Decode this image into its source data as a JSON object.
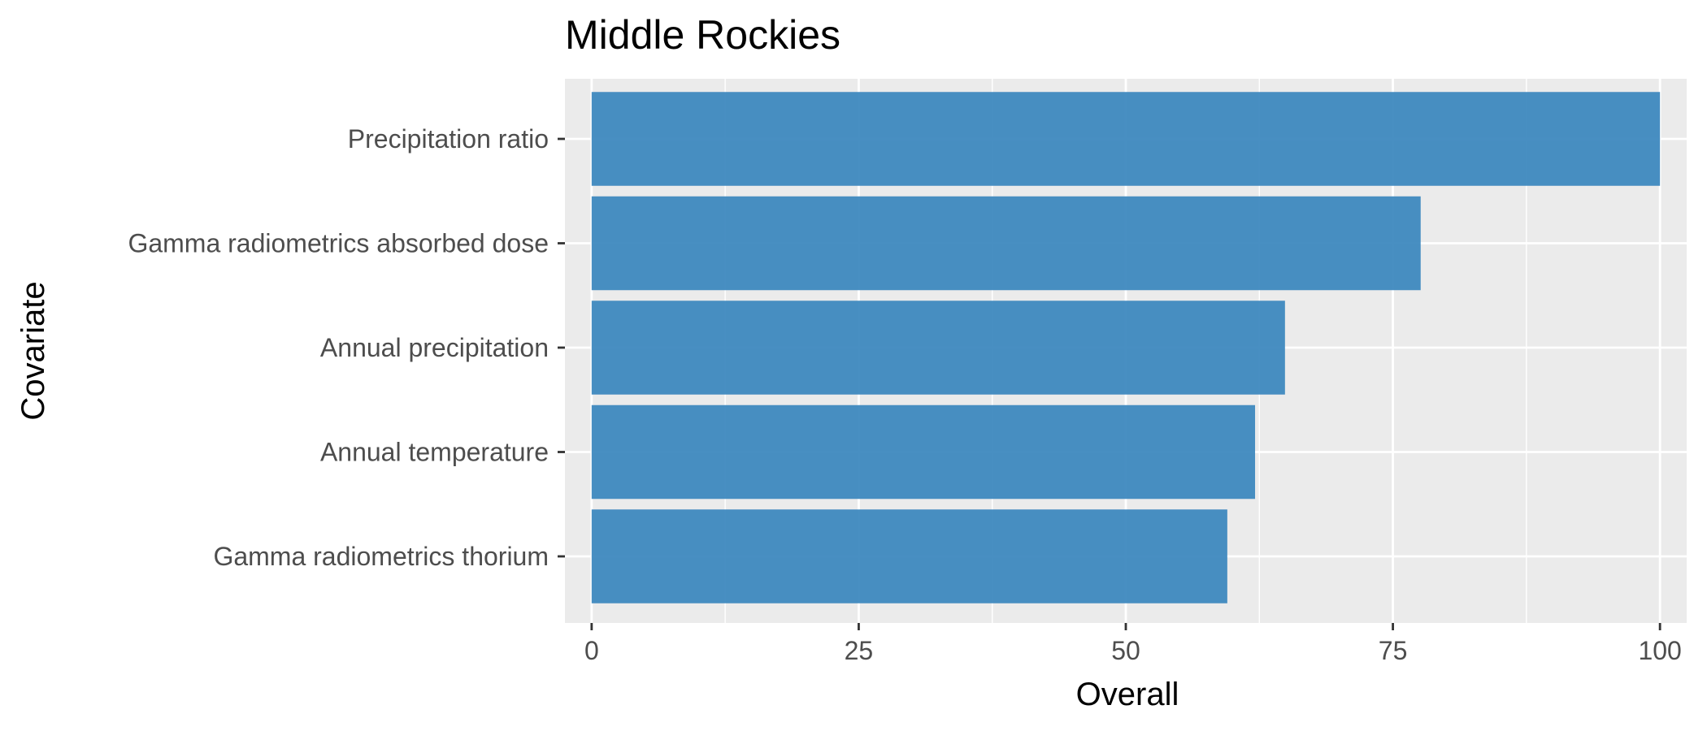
{
  "chart_data": {
    "type": "bar",
    "orientation": "horizontal",
    "title": "Middle Rockies",
    "xlabel": "Overall",
    "ylabel": "Covariate",
    "categories": [
      "Precipitation ratio",
      "Gamma radiometrics absorbed dose",
      "Annual precipitation",
      "Annual temperature",
      "Gamma radiometrics thorium"
    ],
    "values": [
      100,
      77.6,
      64.9,
      62.1,
      59.5
    ],
    "xlim": [
      -2.5,
      102.5
    ],
    "xticks": [
      "0",
      "25",
      "50",
      "75",
      "100"
    ],
    "xtick_values": [
      0,
      25,
      50,
      75,
      100
    ],
    "grid": true,
    "legend": "none",
    "colors": {
      "bar": "#3a87bd",
      "panel": "#ebebeb",
      "grid": "#ffffff"
    }
  }
}
